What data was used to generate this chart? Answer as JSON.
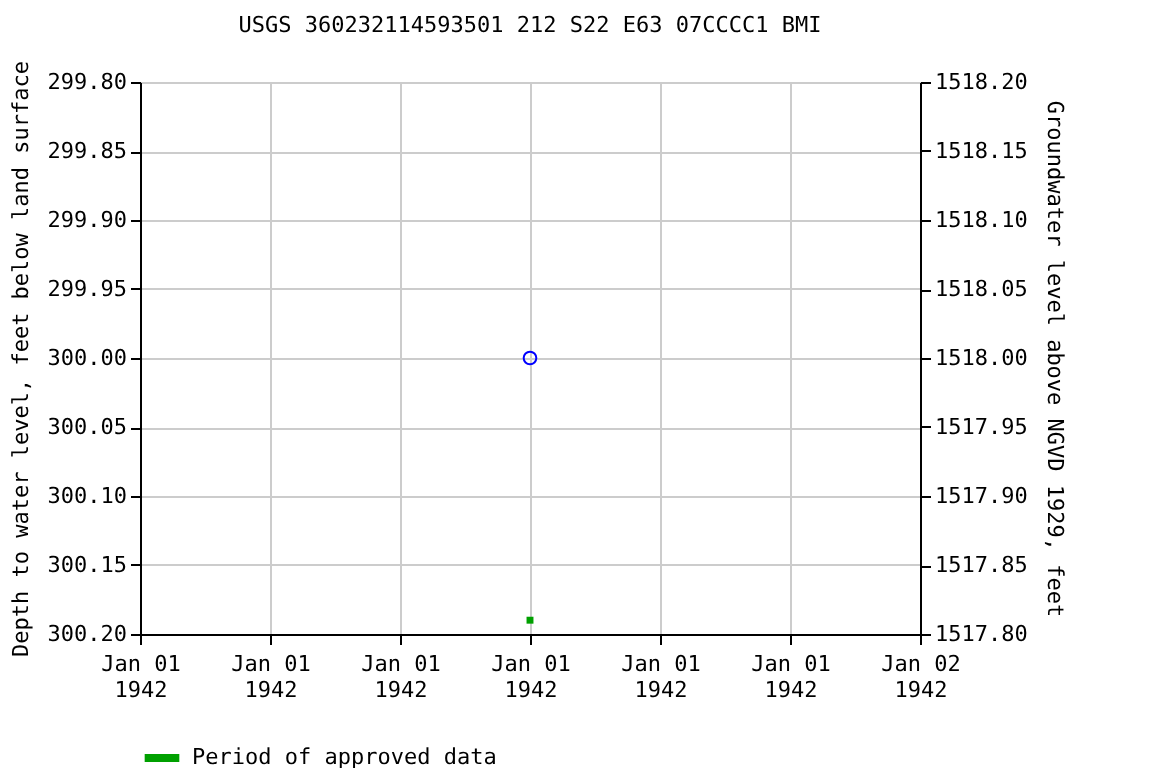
{
  "chart_data": {
    "type": "scatter",
    "title": "USGS 360232114593501 212  S22 E63 07CCCC1    BMI",
    "ylabel": "Depth to water level, feet below land surface",
    "y2label": "Groundwater level above NGVD 1929, feet",
    "series": [
      {
        "color": "#0000ff",
        "marker": "circle",
        "x": [
          "1942-01-01T12:00"
        ],
        "values": [
          300.0
        ]
      },
      {
        "name": "Period of approved data",
        "color": "#00a000",
        "marker": "square",
        "x": [
          "1942-01-01T12:00"
        ],
        "values": [
          300.19
        ]
      }
    ],
    "xlim": [
      "1942-01-01T00:00",
      "1942-01-02T00:00"
    ],
    "xticks": [
      {
        "value": "1942-01-01T00:00",
        "label": "Jan 01 1942"
      },
      {
        "value": "1942-01-01T04:00",
        "label": "Jan 01 1942"
      },
      {
        "value": "1942-01-01T08:00",
        "label": "Jan 01 1942"
      },
      {
        "value": "1942-01-01T12:00",
        "label": "Jan 01 1942"
      },
      {
        "value": "1942-01-01T16:00",
        "label": "Jan 01 1942"
      },
      {
        "value": "1942-01-01T20:00",
        "label": "Jan 01 1942"
      },
      {
        "value": "1942-01-02T00:00",
        "label": "Jan 02 1942"
      }
    ],
    "ylim": [
      300.2,
      299.8
    ],
    "yticks": [
      {
        "value": 299.8,
        "label": "299.80"
      },
      {
        "value": 299.85,
        "label": "299.85"
      },
      {
        "value": 299.9,
        "label": "299.90"
      },
      {
        "value": 299.95,
        "label": "299.95"
      },
      {
        "value": 300.0,
        "label": "300.00"
      },
      {
        "value": 300.05,
        "label": "300.05"
      },
      {
        "value": 300.1,
        "label": "300.10"
      },
      {
        "value": 300.15,
        "label": "300.15"
      },
      {
        "value": 300.2,
        "label": "300.20"
      }
    ],
    "y2lim": [
      1517.8,
      1518.2
    ],
    "y2ticks": [
      {
        "value": 1517.8,
        "label": "1517.80"
      },
      {
        "value": 1517.85,
        "label": "1517.85"
      },
      {
        "value": 1517.9,
        "label": "1517.90"
      },
      {
        "value": 1517.95,
        "label": "1517.95"
      },
      {
        "value": 1518.0,
        "label": "1518.00"
      },
      {
        "value": 1518.05,
        "label": "1518.05"
      },
      {
        "value": 1518.1,
        "label": "1518.10"
      },
      {
        "value": 1518.15,
        "label": "1518.15"
      },
      {
        "value": 1518.2,
        "label": "1518.20"
      }
    ],
    "grid": true,
    "legend": "bottom"
  }
}
